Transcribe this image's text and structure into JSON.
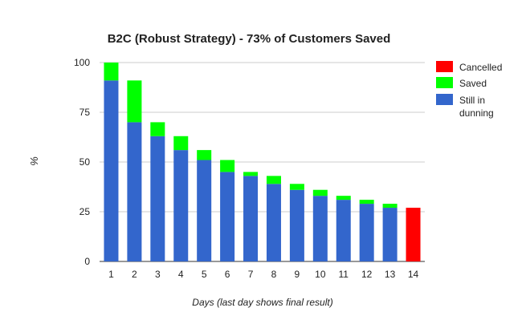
{
  "chart_data": {
    "type": "bar",
    "stacked": true,
    "title": "B2C (Robust Strategy) - 73% of Customers Saved",
    "xlabel": "Days (last day shows final result)",
    "ylabel": "%",
    "ylim": [
      0,
      100
    ],
    "yticks": [
      0,
      25,
      50,
      75,
      100
    ],
    "grid": true,
    "legend_position": "right",
    "categories": [
      "1",
      "2",
      "3",
      "4",
      "5",
      "6",
      "7",
      "8",
      "9",
      "10",
      "11",
      "12",
      "13",
      "14"
    ],
    "series": [
      {
        "name": "Still in dunning",
        "color": "#3366cc",
        "values": [
          91,
          70,
          63,
          56,
          51,
          45,
          43,
          39,
          36,
          33,
          31,
          29,
          27,
          0
        ]
      },
      {
        "name": "Saved",
        "color": "#00ff00",
        "values": [
          9,
          21,
          7,
          7,
          5,
          6,
          2,
          4,
          3,
          3,
          2,
          2,
          2,
          0
        ]
      },
      {
        "name": "Cancelled",
        "color": "#ff0000",
        "values": [
          0,
          0,
          0,
          0,
          0,
          0,
          0,
          0,
          0,
          0,
          0,
          0,
          0,
          27
        ]
      }
    ],
    "legend": [
      {
        "label": "Cancelled",
        "color": "#ff0000"
      },
      {
        "label": "Saved",
        "color": "#00ff00"
      },
      {
        "label": "Still in dunning",
        "color": "#3366cc"
      }
    ]
  }
}
